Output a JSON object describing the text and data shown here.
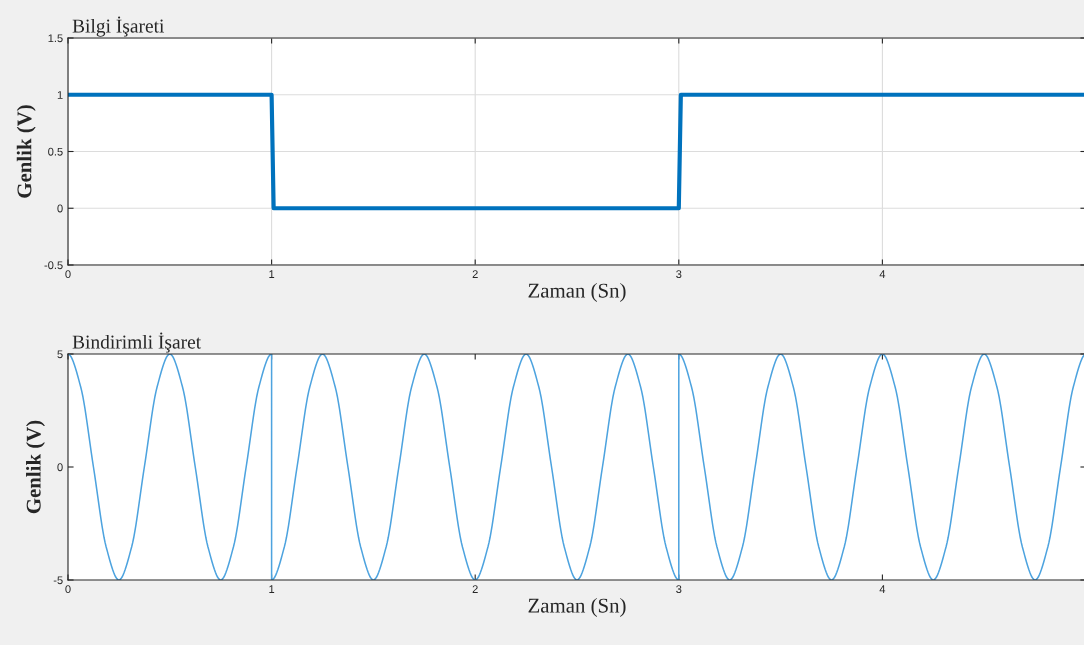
{
  "chart_data": [
    {
      "type": "line",
      "title": "Bilgi İşareti",
      "xlabel": "Zaman (Sn)",
      "ylabel": "Genlik (V)",
      "xlim": [
        0,
        5
      ],
      "ylim": [
        -0.5,
        1.5
      ],
      "xticks": [
        0,
        1,
        2,
        3,
        4
      ],
      "yticks": [
        -0.5,
        0,
        0.5,
        1,
        1.5
      ],
      "grid": true,
      "series": [
        {
          "color": "#0072bd",
          "x": [
            0,
            1,
            1.01,
            3,
            3.01,
            5
          ],
          "values": [
            1,
            1,
            0,
            0,
            1,
            1
          ]
        }
      ]
    },
    {
      "type": "line",
      "title": "Bindirimli İşaret",
      "xlabel": "Zaman (Sn)",
      "ylabel": "Genlik (V)",
      "xlim": [
        0,
        5
      ],
      "ylim": [
        -5,
        5
      ],
      "xticks": [
        0,
        1,
        2,
        3,
        4
      ],
      "yticks": [
        -5,
        0,
        5
      ],
      "grid": false,
      "series": [
        {
          "color": "#4da3df",
          "x": [
            0,
            0.0625,
            0.125,
            0.1875,
            0.25,
            0.3125,
            0.375,
            0.4375,
            0.5,
            0.5625,
            0.625,
            0.6875,
            0.75,
            0.8125,
            0.875,
            0.9375,
            1,
            1,
            1.0625,
            1.125,
            1.1875,
            1.25,
            1.3125,
            1.375,
            1.4375,
            1.5,
            1.5625,
            1.625,
            1.6875,
            1.75,
            1.8125,
            1.875,
            1.9375,
            2,
            2.0625,
            2.125,
            2.1875,
            2.25,
            2.3125,
            2.375,
            2.4375,
            2.5,
            2.5625,
            2.625,
            2.6875,
            2.75,
            2.8125,
            2.875,
            2.9375,
            3,
            3,
            3.0625,
            3.125,
            3.1875,
            3.25,
            3.3125,
            3.375,
            3.4375,
            3.5,
            3.5625,
            3.625,
            3.6875,
            3.75,
            3.8125,
            3.875,
            3.9375,
            4,
            4.0625,
            4.125,
            4.1875,
            4.25,
            4.3125,
            4.375,
            4.4375,
            4.5,
            4.5625,
            4.625,
            4.6875,
            4.75,
            4.8125,
            4.875,
            4.9375,
            5
          ],
          "values": [
            5,
            3.54,
            0,
            -3.54,
            -5,
            -3.54,
            0,
            3.54,
            5,
            3.54,
            0,
            -3.54,
            -5,
            -3.54,
            0,
            3.54,
            5,
            -5,
            -3.54,
            0,
            3.54,
            5,
            3.54,
            0,
            -3.54,
            -5,
            -3.54,
            0,
            3.54,
            5,
            3.54,
            0,
            -3.54,
            -5,
            -3.54,
            0,
            3.54,
            5,
            3.54,
            0,
            -3.54,
            -5,
            -3.54,
            0,
            3.54,
            5,
            3.54,
            0,
            -3.54,
            -5,
            5,
            3.54,
            0,
            -3.54,
            -5,
            -3.54,
            0,
            3.54,
            5,
            3.54,
            0,
            -3.54,
            -5,
            -3.54,
            0,
            3.54,
            5,
            3.54,
            0,
            -3.54,
            -5,
            -3.54,
            0,
            3.54,
            5,
            3.54,
            0,
            -3.54,
            -5,
            -3.54,
            0,
            3.54,
            5
          ]
        }
      ]
    }
  ]
}
